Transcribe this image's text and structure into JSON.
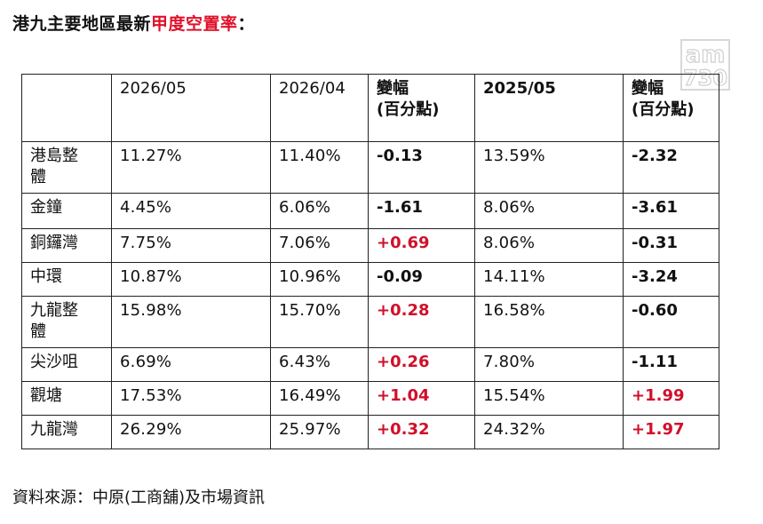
{
  "title": {
    "part1": "港九主要地區最新",
    "highlight": "甲度空置率",
    "suffix": "："
  },
  "watermark": {
    "line1": "am",
    "line2": "730"
  },
  "table": {
    "headers": [
      "",
      "2026/05",
      "2026/04",
      "變幅\n(百分點)",
      "2025/05",
      "變幅\n(百分點)"
    ],
    "rows": [
      {
        "district": "港島整\n體",
        "may26": "11.27%",
        "apr26": "11.40%",
        "chg_mom": "-0.13",
        "may25": "13.59%",
        "chg_yoy": "-2.32"
      },
      {
        "district": "金鐘",
        "may26": "4.45%",
        "apr26": "6.06%",
        "chg_mom": "-1.61",
        "may25": "8.06%",
        "chg_yoy": "-3.61"
      },
      {
        "district": "銅鑼灣",
        "may26": "7.75%",
        "apr26": "7.06%",
        "chg_mom": "+0.69",
        "may25": "8.06%",
        "chg_yoy": "-0.31"
      },
      {
        "district": "中環",
        "may26": "10.87%",
        "apr26": "10.96%",
        "chg_mom": "-0.09",
        "may25": "14.11%",
        "chg_yoy": "-3.24"
      },
      {
        "district": "九龍整\n體",
        "may26": "15.98%",
        "apr26": "15.70%",
        "chg_mom": "+0.28",
        "may25": "16.58%",
        "chg_yoy": "-0.60"
      },
      {
        "district": "尖沙咀",
        "may26": "6.69%",
        "apr26": "6.43%",
        "chg_mom": "+0.26",
        "may25": "7.80%",
        "chg_yoy": "-1.11"
      },
      {
        "district": "觀塘",
        "may26": "17.53%",
        "apr26": "16.49%",
        "chg_mom": "+1.04",
        "may25": "15.54%",
        "chg_yoy": "+1.99"
      },
      {
        "district": "九龍灣",
        "may26": "26.29%",
        "apr26": "25.97%",
        "chg_mom": "+0.32",
        "may25": "24.32%",
        "chg_yoy": "+1.97"
      }
    ]
  },
  "colors": {
    "positive": "#d0102a",
    "negative": "#111111",
    "highlight": "#e0102a"
  },
  "source": "資料來源：中原(工商舖)及市場資訊"
}
